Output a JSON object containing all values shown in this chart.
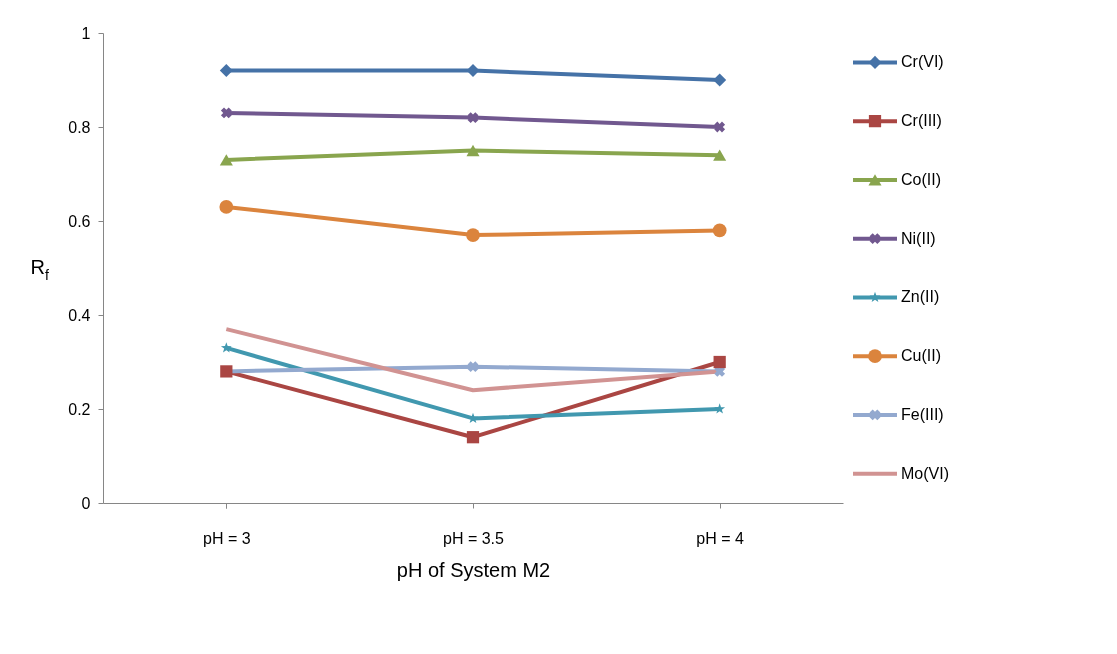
{
  "chart_data": {
    "type": "line",
    "xlabel": "pH of System M2",
    "ylabel": "R$_{f}$",
    "categories": [
      "pH = 3",
      "pH = 3.5",
      "pH = 4"
    ],
    "ylim": [
      0,
      1
    ],
    "yticks": [
      {
        "value": 0,
        "label": "0"
      },
      {
        "value": 0.2,
        "label": "0.2"
      },
      {
        "value": 0.4,
        "label": "0.4"
      },
      {
        "value": 0.6,
        "label": "0.6"
      },
      {
        "value": 0.8,
        "label": "0.8"
      },
      {
        "value": 1,
        "label": "1"
      }
    ],
    "grid": false,
    "legend": "right",
    "series": [
      {
        "name": "Cr(VI)",
        "color": "#4572a7",
        "marker": "diamond",
        "values": [
          0.92,
          0.92,
          0.9
        ]
      },
      {
        "name": "Cr(III)",
        "color": "#aa4643",
        "marker": "square",
        "values": [
          0.28,
          0.14,
          0.3
        ]
      },
      {
        "name": "Co(II)",
        "color": "#89a54e",
        "marker": "triangle",
        "values": [
          0.73,
          0.75,
          0.74
        ]
      },
      {
        "name": "Ni(II)",
        "color": "#71588f",
        "marker": "cross",
        "values": [
          0.83,
          0.82,
          0.8
        ]
      },
      {
        "name": "Zn(II)",
        "color": "#4198af",
        "marker": "star",
        "values": [
          0.33,
          0.18,
          0.2
        ]
      },
      {
        "name": "Cu(II)",
        "color": "#db843d",
        "marker": "circle",
        "values": [
          0.63,
          0.57,
          0.58
        ]
      },
      {
        "name": "Fe(III)",
        "color": "#93a9cf",
        "marker": "cross",
        "values": [
          0.28,
          0.29,
          0.28
        ]
      },
      {
        "name": "Mo(VI)",
        "color": "#d19392",
        "marker": "none",
        "values": [
          0.37,
          0.24,
          0.28
        ]
      }
    ]
  }
}
